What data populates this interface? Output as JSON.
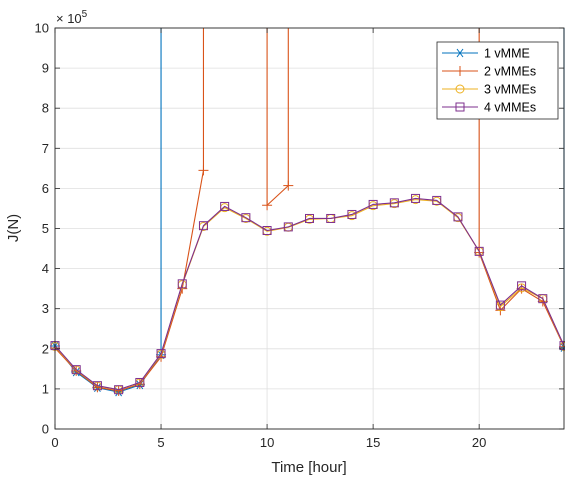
{
  "chart_data": {
    "type": "line",
    "xlabel": "Time [hour]",
    "ylabel": "J(N)",
    "y_multiplier_base": "× 10",
    "y_multiplier_exp": "5",
    "xlim": [
      0,
      24
    ],
    "ylim": [
      0,
      10
    ],
    "x_ticks": [
      0,
      5,
      10,
      15,
      20
    ],
    "y_ticks": [
      0,
      1,
      2,
      3,
      4,
      5,
      6,
      7,
      8,
      9,
      10
    ],
    "grid": true,
    "legend_position": "top-right",
    "x": [
      0,
      1,
      2,
      3,
      4,
      5,
      6,
      7,
      8,
      9,
      10,
      11,
      12,
      13,
      14,
      15,
      16,
      17,
      18,
      19,
      20,
      21,
      22,
      23,
      24
    ],
    "series": [
      {
        "name": "1 vMME",
        "color": "#0072BD",
        "marker": "asterisk",
        "values": [
          2.07,
          1.42,
          1.03,
          0.92,
          1.1,
          1.85,
          null,
          null,
          null,
          null,
          null,
          null,
          null,
          null,
          null,
          null,
          null,
          null,
          null,
          null,
          null,
          null,
          null,
          null,
          2.03
        ]
      },
      {
        "name": "2 vMMEs",
        "color": "#D95319",
        "marker": "plus",
        "values": [
          2.02,
          1.45,
          1.04,
          0.95,
          1.12,
          1.8,
          3.5,
          6.45,
          null,
          null,
          5.58,
          6.07,
          null,
          null,
          null,
          null,
          null,
          null,
          null,
          null,
          4.4,
          2.96,
          3.5,
          3.18,
          2.05
        ]
      },
      {
        "name": "3 vMMEs",
        "color": "#EDB120",
        "marker": "circle",
        "values": [
          2.06,
          1.47,
          1.07,
          0.98,
          1.15,
          1.86,
          3.6,
          5.05,
          5.52,
          5.25,
          4.93,
          5.03,
          5.23,
          5.25,
          5.32,
          5.57,
          5.62,
          5.72,
          5.68,
          5.27,
          4.43,
          3.05,
          3.52,
          3.25,
          2.06
        ]
      },
      {
        "name": "4 vMMEs",
        "color": "#7E2F8E",
        "marker": "square",
        "values": [
          2.08,
          1.48,
          1.08,
          0.98,
          1.16,
          1.88,
          3.62,
          5.07,
          5.55,
          5.27,
          4.95,
          5.04,
          5.25,
          5.25,
          5.35,
          5.6,
          5.64,
          5.75,
          5.7,
          5.29,
          4.43,
          3.09,
          3.57,
          3.25,
          2.08
        ]
      }
    ],
    "vertical_spikes": [
      {
        "series": "1 vMME",
        "segments": [
          [
            5,
            1.85,
            10
          ],
          [
            24,
            2.03,
            10
          ]
        ]
      },
      {
        "series": "2 vMMEs",
        "segments": [
          [
            7,
            6.45,
            10
          ],
          [
            10,
            5.58,
            10
          ],
          [
            11,
            6.07,
            10
          ],
          [
            20,
            4.4,
            10
          ]
        ]
      }
    ]
  }
}
